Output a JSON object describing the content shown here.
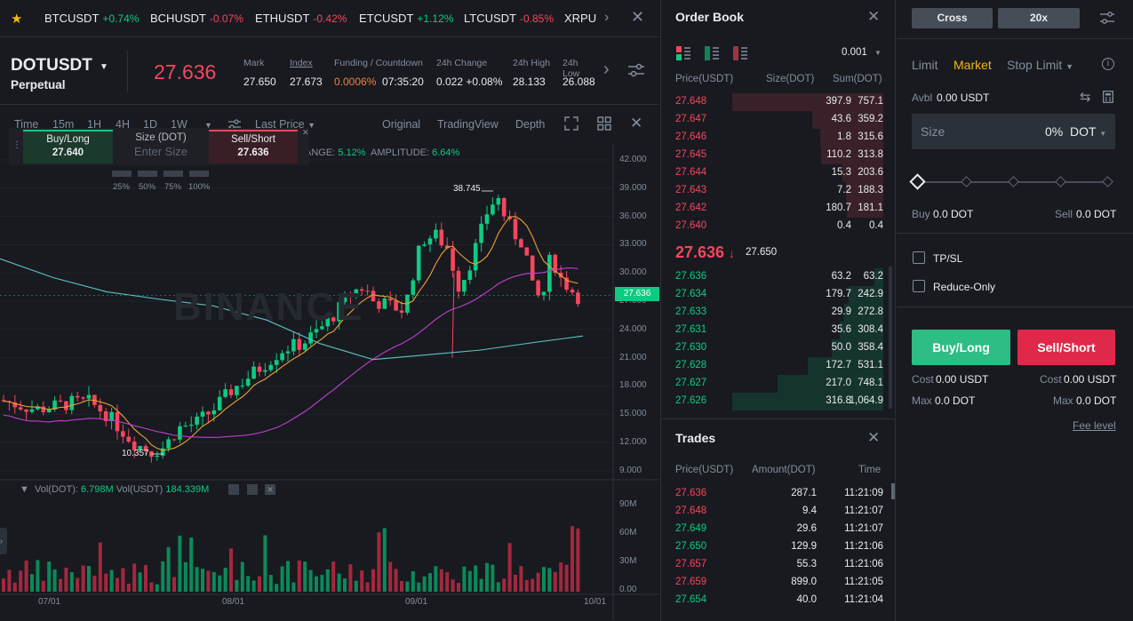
{
  "ticker": [
    {
      "sym": "BTCUSDT",
      "chg": "+0.74%",
      "dir": "up"
    },
    {
      "sym": "BCHUSDT",
      "chg": "-0.07%",
      "dir": "down"
    },
    {
      "sym": "ETHUSDT",
      "chg": "-0.42%",
      "dir": "down"
    },
    {
      "sym": "ETCUSDT",
      "chg": "+1.12%",
      "dir": "up"
    },
    {
      "sym": "LTCUSDT",
      "chg": "-0.85%",
      "dir": "down"
    },
    {
      "sym": "XRPU",
      "chg": "",
      "dir": "down"
    }
  ],
  "header": {
    "symbol": "DOTUSDT",
    "contract": "Perpetual",
    "price": "27.636",
    "mark_label": "Mark",
    "mark": "27.650",
    "index_label": "Index",
    "index": "27.673",
    "funding_label": "Funding / Countdown",
    "funding_rate": "0.0006%",
    "countdown": "07:35:20",
    "change_label": "24h Change",
    "change": "0.022 +0.08%",
    "high_label": "24h High",
    "high": "28.133",
    "low_label": "24h Low",
    "low": "26.088"
  },
  "chart_toolbar": {
    "intervals": [
      "Time",
      "15m",
      "1H",
      "4H",
      "1D",
      "1W"
    ],
    "active": "1D",
    "price_type": "Last Price",
    "views": [
      "Original",
      "TradingView",
      "Depth"
    ],
    "active_view": "Original"
  },
  "quick_trade": {
    "buy_label": "Buy/Long",
    "buy_price": "27.640",
    "size_label": "Size (DOT)",
    "size_placeholder": "Enter Size",
    "sell_label": "Sell/Short",
    "sell_price": "27.636",
    "pcts": [
      "25%",
      "50%",
      "75%",
      "100%"
    ]
  },
  "chart_info": {
    "change_label": "ANGE:",
    "change": "5.12%",
    "amp_label": "AMPLITUDE:",
    "amp": "6.64%",
    "watermark": "BINANCE"
  },
  "volume_info": {
    "vol_dot_label": "Vol(DOT):",
    "vol_dot": "6.798M",
    "vol_usdt_label": "Vol(USDT)",
    "vol_usdt": "184.339M"
  },
  "chart_data": {
    "type": "candlestick",
    "price_axis": [
      "42.000",
      "39.000",
      "36.000",
      "33.000",
      "30.000",
      "27.000",
      "24.000",
      "21.000",
      "18.000",
      "15.000",
      "12.000",
      "9.000"
    ],
    "volume_axis": [
      "90M",
      "60M",
      "30M",
      "0.00"
    ],
    "date_axis": [
      "07/01",
      "08/01",
      "09/01",
      "10/01"
    ],
    "high_label": "38.745",
    "low_label": "10.357",
    "last_price": "27.636",
    "ylim": [
      7.5,
      43.5
    ]
  },
  "orderbook": {
    "title": "Order Book",
    "precision": "0.001",
    "headers": [
      "Price(USDT)",
      "Size(DOT)",
      "Sum(DOT)"
    ],
    "asks": [
      {
        "p": "27.648",
        "s": "397.9",
        "m": "757.1",
        "d": 1.0
      },
      {
        "p": "27.647",
        "s": "43.6",
        "m": "359.2",
        "d": 0.47
      },
      {
        "p": "27.646",
        "s": "1.8",
        "m": "315.6",
        "d": 0.42
      },
      {
        "p": "27.645",
        "s": "110.2",
        "m": "313.8",
        "d": 0.41
      },
      {
        "p": "27.644",
        "s": "15.3",
        "m": "203.6",
        "d": 0.27
      },
      {
        "p": "27.643",
        "s": "7.2",
        "m": "188.3",
        "d": 0.25
      },
      {
        "p": "27.642",
        "s": "180.7",
        "m": "181.1",
        "d": 0.24
      },
      {
        "p": "27.640",
        "s": "0.4",
        "m": "0.4",
        "d": 0.0
      }
    ],
    "last": "27.636",
    "mark": "27.650",
    "bids": [
      {
        "p": "27.636",
        "s": "63.2",
        "m": "63.2",
        "d": 0.06
      },
      {
        "p": "27.634",
        "s": "179.7",
        "m": "242.9",
        "d": 0.23
      },
      {
        "p": "27.633",
        "s": "29.9",
        "m": "272.8",
        "d": 0.26
      },
      {
        "p": "27.631",
        "s": "35.6",
        "m": "308.4",
        "d": 0.29
      },
      {
        "p": "27.630",
        "s": "50.0",
        "m": "358.4",
        "d": 0.34
      },
      {
        "p": "27.628",
        "s": "172.7",
        "m": "531.1",
        "d": 0.5
      },
      {
        "p": "27.627",
        "s": "217.0",
        "m": "748.1",
        "d": 0.7
      },
      {
        "p": "27.626",
        "s": "316.8",
        "m": "1,064.9",
        "d": 1.0
      }
    ]
  },
  "trades": {
    "title": "Trades",
    "headers": [
      "Price(USDT)",
      "Amount(DOT)",
      "Time"
    ],
    "rows": [
      {
        "p": "27.636",
        "a": "287.1",
        "t": "11:21:09",
        "dir": "down"
      },
      {
        "p": "27.648",
        "a": "9.4",
        "t": "11:21:07",
        "dir": "down"
      },
      {
        "p": "27.649",
        "a": "29.6",
        "t": "11:21:07",
        "dir": "up"
      },
      {
        "p": "27.650",
        "a": "129.9",
        "t": "11:21:06",
        "dir": "up"
      },
      {
        "p": "27.657",
        "a": "55.3",
        "t": "11:21:06",
        "dir": "down"
      },
      {
        "p": "27.659",
        "a": "899.0",
        "t": "11:21:05",
        "dir": "down"
      },
      {
        "p": "27.654",
        "a": "40.0",
        "t": "11:21:04",
        "dir": "up"
      }
    ]
  },
  "order_form": {
    "margin_mode": "Cross",
    "leverage": "20x",
    "tabs": [
      "Limit",
      "Market",
      "Stop Limit"
    ],
    "active_tab": "Market",
    "avbl_label": "Avbl",
    "avbl": "0.00 USDT",
    "size_label": "Size",
    "size_pct": "0%",
    "size_unit": "DOT",
    "buy_label": "Buy",
    "buy_val": "0.0 DOT",
    "sell_label": "Sell",
    "sell_val": "0.0 DOT",
    "tpsl": "TP/SL",
    "reduce_only": "Reduce-Only",
    "buy_btn": "Buy/Long",
    "sell_btn": "Sell/Short",
    "cost_label": "Cost",
    "cost_buy": "0.00 USDT",
    "cost_sell": "0.00 USDT",
    "max_label": "Max",
    "max_buy": "0.0 DOT",
    "max_sell": "0.0 DOT",
    "fee_level": "Fee level"
  },
  "colors": {
    "green": "#0ecb81",
    "red": "#f6465d",
    "gold": "#f0b90b",
    "bg": "#181a20"
  }
}
